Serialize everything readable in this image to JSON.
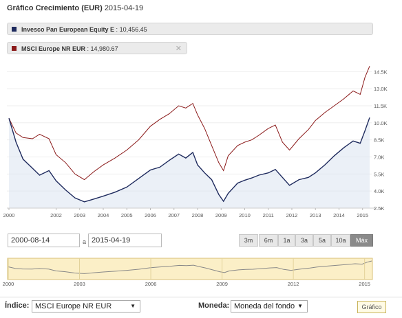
{
  "header": {
    "title_bold": "Gráfico Crecimiento (EUR)",
    "date": "2015-04-19"
  },
  "legend": [
    {
      "label": "Invesco Pan European Equity E",
      "value": "10,456.45",
      "color": "#1f2b5e"
    },
    {
      "label": "MSCI Europe NR EUR",
      "value": "14,980.67",
      "color": "#8b1a1a"
    }
  ],
  "controls": {
    "date_from": "2000-08-14",
    "date_sep": "a",
    "date_to": "2015-04-19",
    "ranges": [
      "3m",
      "6m",
      "1a",
      "3a",
      "5a",
      "10a",
      "Máx"
    ],
    "active_range": "Máx"
  },
  "navigator": {
    "ticks": [
      "2000",
      "2003",
      "2006",
      "2009",
      "2012",
      "2015"
    ]
  },
  "bottom": {
    "index_label": "Índice:",
    "index_value": "MSCI Europe NR EUR",
    "currency_label": "Moneda:",
    "currency_value": "Moneda del fondo",
    "chart_button": "Gráfico"
  },
  "chart_data": {
    "type": "line",
    "x_ticks": [
      "2000",
      "2002",
      "2003",
      "2004",
      "2005",
      "2006",
      "2007",
      "2008",
      "2009",
      "2010",
      "2011",
      "2012",
      "2013",
      "2014",
      "2015"
    ],
    "y_ticks": [
      "2.5K",
      "4.0K",
      "5.5K",
      "7.0K",
      "8.5K",
      "10.0K",
      "11.5K",
      "13.0K",
      "14.5K"
    ],
    "ylim": [
      2500,
      15000
    ],
    "series": [
      {
        "name": "Invesco Pan European Equity E",
        "color": "#1f2b5e",
        "x": [
          2000.0,
          2000.3,
          2000.6,
          2001.0,
          2001.3,
          2001.7,
          2002.0,
          2002.4,
          2002.8,
          2003.2,
          2003.6,
          2004.0,
          2004.5,
          2005.0,
          2005.5,
          2006.0,
          2006.4,
          2006.8,
          2007.2,
          2007.5,
          2007.8,
          2008.0,
          2008.3,
          2008.6,
          2008.9,
          2009.1,
          2009.3,
          2009.7,
          2010.0,
          2010.3,
          2010.6,
          2011.0,
          2011.3,
          2011.6,
          2011.9,
          2012.3,
          2012.7,
          2013.0,
          2013.4,
          2013.8,
          2014.2,
          2014.6,
          2014.9,
          2015.1,
          2015.3
        ],
        "values": [
          10400,
          8300,
          6800,
          6000,
          5400,
          5800,
          4900,
          4100,
          3400,
          3050,
          3300,
          3550,
          3900,
          4350,
          5100,
          5850,
          6100,
          6700,
          7250,
          6900,
          7400,
          6300,
          5600,
          5000,
          3700,
          3100,
          3800,
          4700,
          4950,
          5150,
          5400,
          5600,
          5900,
          5200,
          4500,
          5000,
          5200,
          5600,
          6300,
          7100,
          7800,
          8400,
          8200,
          9300,
          10456
        ]
      },
      {
        "name": "MSCI Europe NR EUR",
        "color": "#8b1a1a",
        "x": [
          2000.0,
          2000.3,
          2000.6,
          2001.0,
          2001.3,
          2001.7,
          2002.0,
          2002.4,
          2002.8,
          2003.2,
          2003.6,
          2004.0,
          2004.5,
          2005.0,
          2005.5,
          2006.0,
          2006.4,
          2006.8,
          2007.2,
          2007.5,
          2007.8,
          2008.0,
          2008.3,
          2008.6,
          2008.9,
          2009.1,
          2009.3,
          2009.7,
          2010.0,
          2010.3,
          2010.6,
          2011.0,
          2011.3,
          2011.6,
          2011.9,
          2012.3,
          2012.7,
          2013.0,
          2013.4,
          2013.8,
          2014.2,
          2014.6,
          2014.9,
          2015.1,
          2015.3
        ],
        "values": [
          10400,
          9100,
          8700,
          8600,
          9000,
          8600,
          7200,
          6500,
          5500,
          5000,
          5700,
          6300,
          6900,
          7600,
          8500,
          9700,
          10300,
          10800,
          11500,
          11300,
          11700,
          10700,
          9500,
          8000,
          6500,
          5800,
          7100,
          8000,
          8300,
          8500,
          8900,
          9500,
          9800,
          8300,
          7600,
          8600,
          9400,
          10200,
          10900,
          11500,
          12100,
          12800,
          12500,
          14000,
          14981
        ]
      }
    ]
  }
}
